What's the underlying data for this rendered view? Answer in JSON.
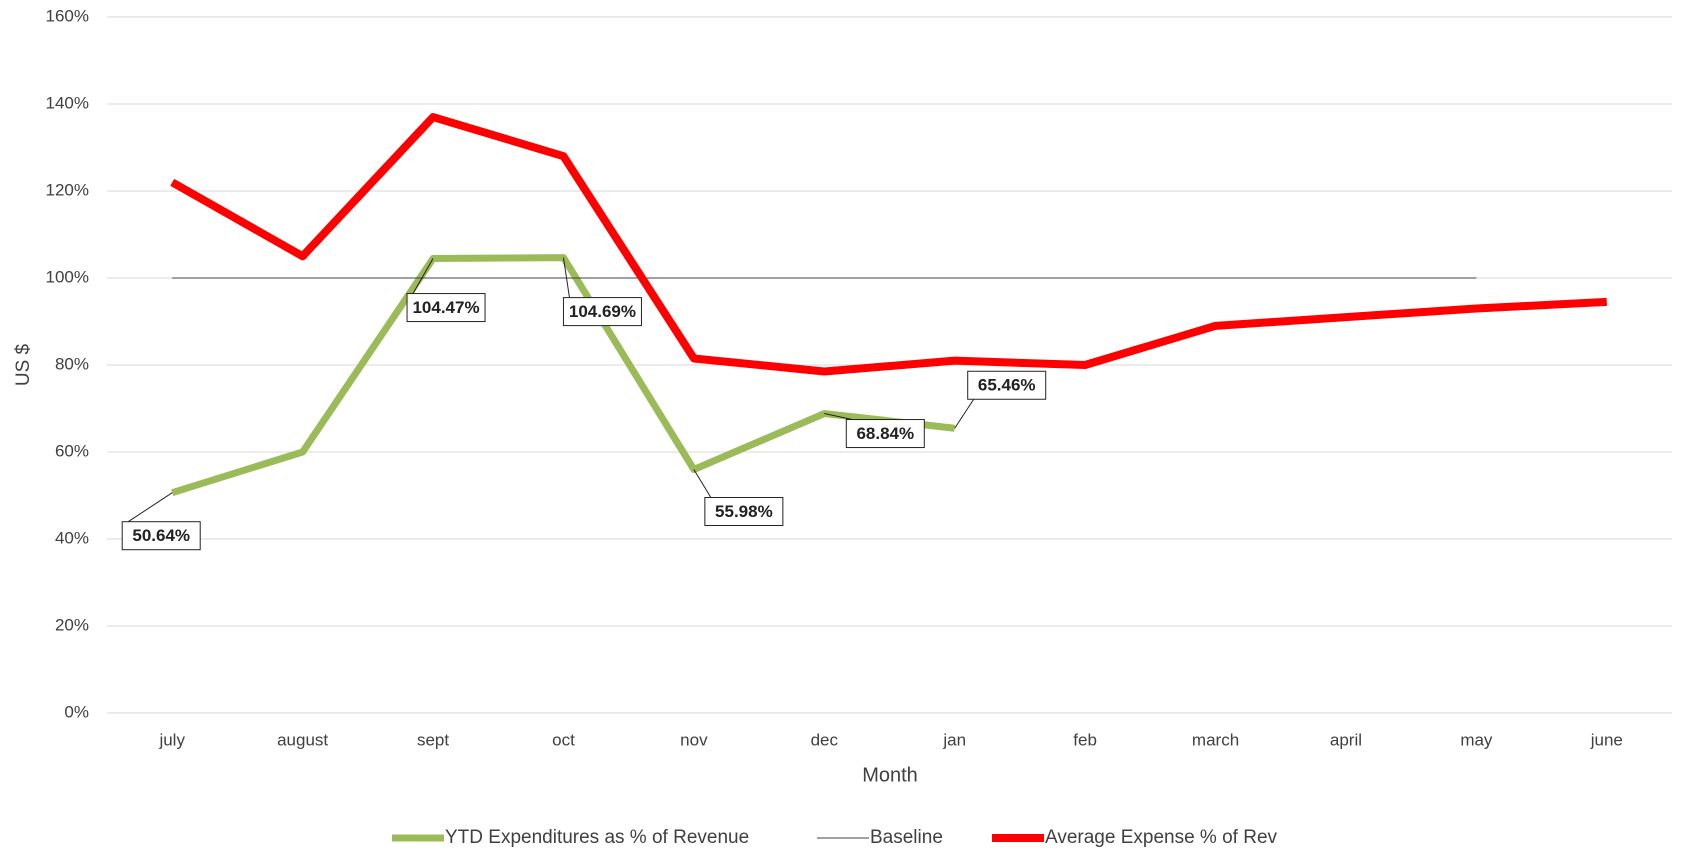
{
  "chart_data": {
    "type": "line",
    "x_label": "Month",
    "y_label": "US $",
    "categories": [
      "july",
      "august",
      "sept",
      "oct",
      "nov",
      "dec",
      "jan",
      "feb",
      "march",
      "april",
      "may",
      "june"
    ],
    "ylim": [
      0,
      160
    ],
    "yticks": [
      {
        "value": 0,
        "label": "0%"
      },
      {
        "value": 20,
        "label": "20%"
      },
      {
        "value": 40,
        "label": "40%"
      },
      {
        "value": 60,
        "label": "60%"
      },
      {
        "value": 80,
        "label": "80%"
      },
      {
        "value": 100,
        "label": "100%"
      },
      {
        "value": 120,
        "label": "120%"
      },
      {
        "value": 140,
        "label": "140%"
      },
      {
        "value": 160,
        "label": "160%"
      }
    ],
    "grid": true,
    "legend": "bottom",
    "series": [
      {
        "name": "YTD Expenditures as % of Revenue",
        "color": "#9bbb59",
        "width": 7,
        "values": [
          50.64,
          60,
          104.47,
          104.69,
          55.98,
          68.84,
          65.46,
          null,
          null,
          null,
          null,
          null
        ],
        "value_labels": [
          "50.64%",
          null,
          "104.47%",
          "104.69%",
          "55.98%",
          "68.84%",
          "65.46%",
          null,
          null,
          null,
          null,
          null
        ]
      },
      {
        "name": "Baseline",
        "color": "#404040",
        "width": 1,
        "values": [
          100,
          100,
          100,
          100,
          100,
          100,
          100,
          100,
          100,
          100,
          100,
          null
        ]
      },
      {
        "name": "Average Expense % of Rev",
        "color": "#ff0000",
        "width": 8,
        "values": [
          122,
          105,
          137,
          128,
          81.5,
          78.5,
          81,
          80,
          89,
          91,
          93,
          94.5
        ]
      }
    ]
  }
}
